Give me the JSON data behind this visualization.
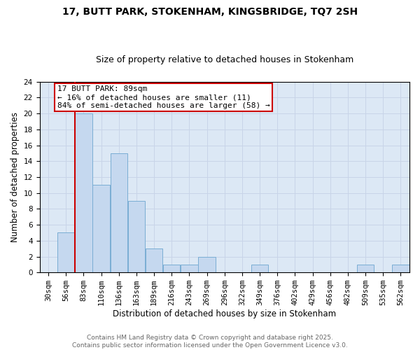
{
  "title1": "17, BUTT PARK, STOKENHAM, KINGSBRIDGE, TQ7 2SH",
  "title2": "Size of property relative to detached houses in Stokenham",
  "xlabel": "Distribution of detached houses by size in Stokenham",
  "ylabel": "Number of detached properties",
  "tick_labels": [
    "30sqm",
    "56sqm",
    "83sqm",
    "110sqm",
    "136sqm",
    "163sqm",
    "189sqm",
    "216sqm",
    "243sqm",
    "269sqm",
    "296sqm",
    "322sqm",
    "349sqm",
    "376sqm",
    "402sqm",
    "429sqm",
    "456sqm",
    "482sqm",
    "509sqm",
    "535sqm",
    "562sqm"
  ],
  "counts": [
    0,
    5,
    20,
    11,
    15,
    9,
    3,
    1,
    1,
    2,
    0,
    0,
    1,
    0,
    0,
    0,
    0,
    0,
    1,
    0,
    1
  ],
  "bar_color": "#c5d8ef",
  "bar_edge_color": "#7aadd4",
  "red_line_bin": 2,
  "red_line_color": "#cc0000",
  "annotation_text": "17 BUTT PARK: 89sqm\n← 16% of detached houses are smaller (11)\n84% of semi-detached houses are larger (58) →",
  "annotation_box_color": "#ffffff",
  "annotation_box_edge_color": "#cc0000",
  "ylim": [
    0,
    24
  ],
  "yticks": [
    0,
    2,
    4,
    6,
    8,
    10,
    12,
    14,
    16,
    18,
    20,
    22,
    24
  ],
  "grid_color": "#c8d4e8",
  "bg_color": "#dce8f5",
  "footnote": "Contains HM Land Registry data © Crown copyright and database right 2025.\nContains public sector information licensed under the Open Government Licence v3.0.",
  "title_fontsize": 10,
  "subtitle_fontsize": 9,
  "axis_label_fontsize": 8.5,
  "tick_fontsize": 7.5,
  "annotation_fontsize": 8,
  "footnote_fontsize": 6.5
}
